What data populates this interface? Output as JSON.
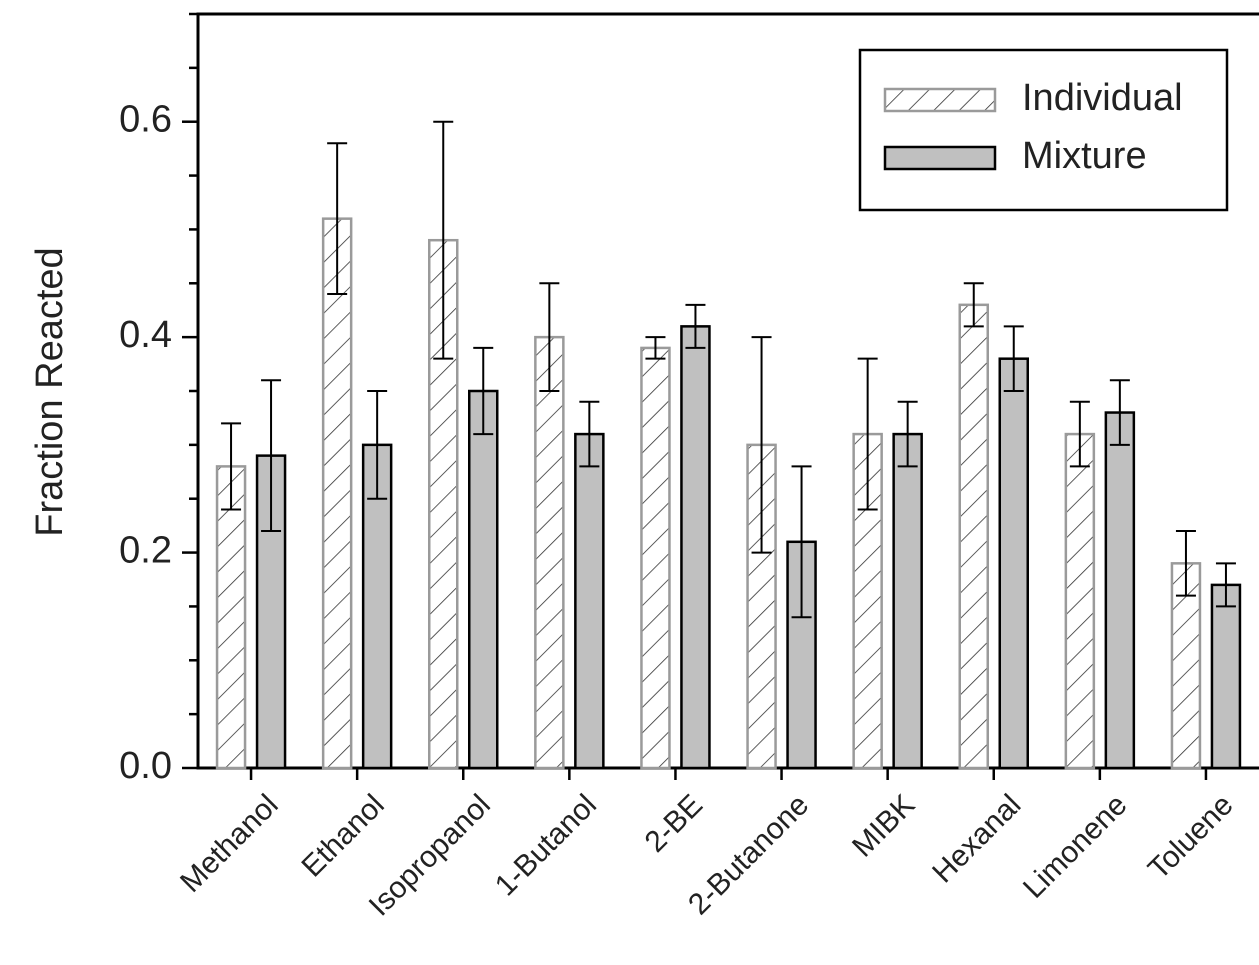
{
  "chart_data": {
    "type": "bar",
    "title": "",
    "xlabel": "",
    "ylabel": "Fraction Reacted",
    "ylim": [
      0,
      0.7
    ],
    "yticks": [
      0.0,
      0.2,
      0.4,
      0.6
    ],
    "ytick_labels": [
      "0.0",
      "0.2",
      "0.4",
      "0.6"
    ],
    "grid": false,
    "legend": "top-right",
    "categories": [
      "Methanol",
      "Ethanol",
      "Isopropanol",
      "1-Butanol",
      "2-BE",
      "2-Butanone",
      "MIBK",
      "Hexanal",
      "Limonene",
      "Toluene"
    ],
    "series": [
      {
        "name": "Individual",
        "pattern": "hatched",
        "color": "#9a9a9a",
        "values": [
          0.28,
          0.51,
          0.49,
          0.4,
          0.39,
          0.3,
          0.31,
          0.43,
          0.31,
          0.19
        ],
        "errors": [
          0.04,
          0.07,
          0.11,
          0.05,
          0.01,
          0.1,
          0.07,
          0.02,
          0.03,
          0.03
        ]
      },
      {
        "name": "Mixture",
        "pattern": "solid",
        "color": "#c0c0c0",
        "values": [
          0.29,
          0.3,
          0.35,
          0.31,
          0.41,
          0.21,
          0.31,
          0.38,
          0.33,
          0.17
        ],
        "errors": [
          0.07,
          0.05,
          0.04,
          0.03,
          0.02,
          0.07,
          0.03,
          0.03,
          0.03,
          0.02
        ]
      }
    ]
  }
}
